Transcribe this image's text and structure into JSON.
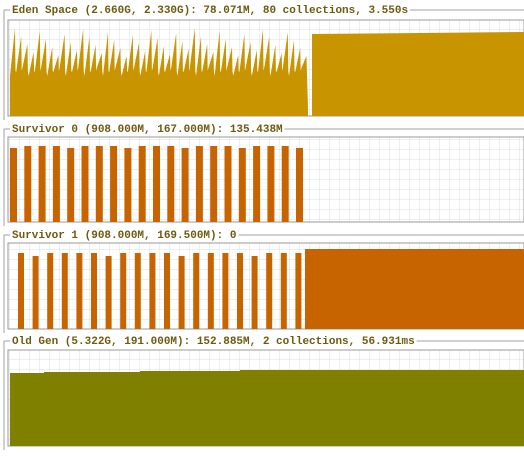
{
  "panels": [
    {
      "title": "Eden Space (2.660G, 2.330G): 78.071M, 80 collections, 3.550s"
    },
    {
      "title": "Survivor 0 (908.000M, 167.000M): 135.438M"
    },
    {
      "title": "Survivor 1 (908.000M, 169.500M): 0"
    },
    {
      "title": "Old Gen (5.322G, 191.000M): 152.885M, 2 collections, 56.931ms"
    }
  ]
}
